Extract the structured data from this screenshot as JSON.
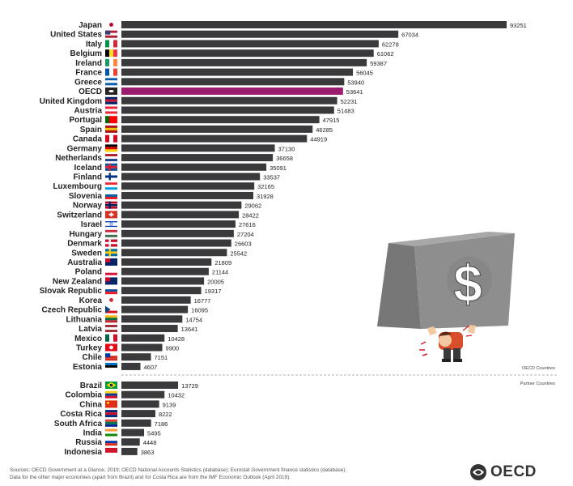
{
  "chart_data": {
    "type": "bar",
    "orientation": "horizontal",
    "title": "",
    "xlabel": "",
    "ylabel": "",
    "xlim": [
      0,
      93251
    ],
    "grid": false,
    "groups": [
      {
        "name": "OECD Countries",
        "categories": [
          "Japan",
          "United States",
          "Italy",
          "Belgium",
          "Ireland",
          "France",
          "Greece",
          "OECD",
          "United Kingdom",
          "Austria",
          "Portugal",
          "Spain",
          "Canada",
          "Germany",
          "Netherlands",
          "Iceland",
          "Finland",
          "Luxembourg",
          "Slovenia",
          "Norway",
          "Switzerland",
          "Israel",
          "Hungary",
          "Denmark",
          "Sweden",
          "Australia",
          "Poland",
          "New Zealand",
          "Slovak Republic",
          "Korea",
          "Czech Republic",
          "Lithuania",
          "Latvia",
          "Mexico",
          "Turkey",
          "Chile",
          "Estonia"
        ],
        "values": [
          93251,
          67034,
          62278,
          61062,
          59387,
          56045,
          53940,
          53641,
          52231,
          51483,
          47915,
          46285,
          44919,
          37130,
          36658,
          35091,
          33537,
          32165,
          31928,
          29062,
          28422,
          27616,
          27204,
          26603,
          25542,
          21809,
          21144,
          20005,
          19317,
          16777,
          16095,
          14754,
          13641,
          10428,
          9900,
          7151,
          4607
        ]
      },
      {
        "name": "Partner Countries",
        "categories": [
          "Brazil",
          "Colombia",
          "China",
          "Costa Rica",
          "South Africa",
          "India",
          "Russia",
          "Indonesia"
        ],
        "values": [
          13729,
          10432,
          9139,
          8222,
          7186,
          5495,
          4448,
          3863
        ]
      }
    ],
    "highlight": "OECD",
    "colors": {
      "bar": "#3a3a3c",
      "highlight": "#9b1b6e",
      "divider": "#9a9a9a"
    }
  },
  "flags": {
    "Japan": [
      "#ffffff",
      "#ffffff",
      "#ffffff",
      "dot:#bc002d"
    ],
    "United States": [
      "#b22234",
      "#ffffff",
      "#b22234",
      "canton:#3c3b6e"
    ],
    "Italy": [
      "#009246",
      "#ffffff",
      "#ce2b37",
      "v"
    ],
    "Belgium": [
      "#000000",
      "#fdda24",
      "#ef3340",
      "v"
    ],
    "Ireland": [
      "#169b62",
      "#ffffff",
      "#ff883e",
      "v"
    ],
    "France": [
      "#0055a4",
      "#ffffff",
      "#ef4135",
      "v"
    ],
    "Greece": [
      "#0d5eaf",
      "#ffffff",
      "#0d5eaf",
      "h"
    ],
    "OECD": [
      "#222222",
      "#222222",
      "#222222",
      "oecd"
    ],
    "United Kingdom": [
      "#012169",
      "#c8102e",
      "#012169",
      "h"
    ],
    "Austria": [
      "#ed2939",
      "#ffffff",
      "#ed2939",
      "h"
    ],
    "Portugal": [
      "#006600",
      "#ff0000",
      "#ff0000",
      "v"
    ],
    "Spain": [
      "#aa151b",
      "#f1bf00",
      "#aa151b",
      "h"
    ],
    "Canada": [
      "#d80621",
      "#ffffff",
      "#d80621",
      "v"
    ],
    "Germany": [
      "#000000",
      "#dd0000",
      "#ffce00",
      "h"
    ],
    "Netherlands": [
      "#ae1c28",
      "#ffffff",
      "#21468b",
      "h"
    ],
    "Iceland": [
      "#02529c",
      "#dc1e35",
      "#02529c",
      "cross:#dc1e35"
    ],
    "Finland": [
      "#ffffff",
      "#003580",
      "#ffffff",
      "cross:#003580"
    ],
    "Luxembourg": [
      "#ed2939",
      "#ffffff",
      "#00a1de",
      "h"
    ],
    "Slovenia": [
      "#ffffff",
      "#005da4",
      "#ed1c24",
      "h"
    ],
    "Norway": [
      "#ba0c2f",
      "#ffffff",
      "#ba0c2f",
      "cross:#00205b"
    ],
    "Switzerland": [
      "#d52b1e",
      "#d52b1e",
      "#d52b1e",
      "plus:#ffffff"
    ],
    "Israel": [
      "#ffffff",
      "#ffffff",
      "#ffffff",
      "stripes:#0038b8"
    ],
    "Hungary": [
      "#cd2a3e",
      "#ffffff",
      "#436f4d",
      "h"
    ],
    "Denmark": [
      "#c8102e",
      "#c8102e",
      "#c8102e",
      "cross:#ffffff"
    ],
    "Sweden": [
      "#006aa7",
      "#006aa7",
      "#006aa7",
      "cross:#fecc00"
    ],
    "Australia": [
      "#012169",
      "#012169",
      "#012169",
      "canton:#c8102e"
    ],
    "Poland": [
      "#ffffff",
      "#ffffff",
      "#dc143c",
      "h"
    ],
    "New Zealand": [
      "#012169",
      "#012169",
      "#012169",
      "canton:#c8102e"
    ],
    "Slovak Republic": [
      "#ffffff",
      "#0b4ea2",
      "#ee1c25",
      "h"
    ],
    "Korea": [
      "#ffffff",
      "#ffffff",
      "#ffffff",
      "dot:#cd2e3a"
    ],
    "Czech Republic": [
      "#ffffff",
      "#ffffff",
      "#d7141a",
      "tri:#11457e"
    ],
    "Lithuania": [
      "#fdb913",
      "#006a44",
      "#c1272d",
      "h"
    ],
    "Latvia": [
      "#9e3039",
      "#ffffff",
      "#9e3039",
      "h"
    ],
    "Mexico": [
      "#006847",
      "#ffffff",
      "#ce1126",
      "v"
    ],
    "Turkey": [
      "#e30a17",
      "#e30a17",
      "#e30a17",
      "dot:#ffffff"
    ],
    "Chile": [
      "#ffffff",
      "#d52b1e",
      "#d52b1e",
      "canton:#0039a6"
    ],
    "Estonia": [
      "#0072ce",
      "#000000",
      "#ffffff",
      "h"
    ],
    "Brazil": [
      "#009c3b",
      "#009c3b",
      "#009c3b",
      "diamond:#ffdf00"
    ],
    "Colombia": [
      "#fcd116",
      "#003893",
      "#ce1126",
      "h"
    ],
    "China": [
      "#de2910",
      "#de2910",
      "#de2910",
      "star:#ffde00"
    ],
    "Costa Rica": [
      "#002b7f",
      "#ce1126",
      "#002b7f",
      "h"
    ],
    "South Africa": [
      "#de3831",
      "#007a4d",
      "#002395",
      "h"
    ],
    "India": [
      "#ff9933",
      "#ffffff",
      "#138808",
      "h"
    ],
    "Russia": [
      "#ffffff",
      "#0039a6",
      "#d52b1e",
      "h"
    ],
    "Indonesia": [
      "#ce1126",
      "#ce1126",
      "#ffffff",
      "h"
    ]
  },
  "legend": {
    "oecd_label": "OECD Countries",
    "partner_label": "Partner Countries"
  },
  "footer": {
    "source_line1": "Sources: OECD Government at a Glance, 2019; OECD National Accounts Statistics (database); Eurostat Government finance statistics (database).",
    "source_line2": "Data for the other major economies (apart from Brazil) and for Costa Rica are from the IMF Economic Outlook (April 2019).",
    "logo_text": "OECD"
  },
  "illustration": {
    "symbol": "$"
  },
  "icons": {
    "logo": "oecd-logo-icon",
    "illustration": "debt-burden-illustration"
  }
}
